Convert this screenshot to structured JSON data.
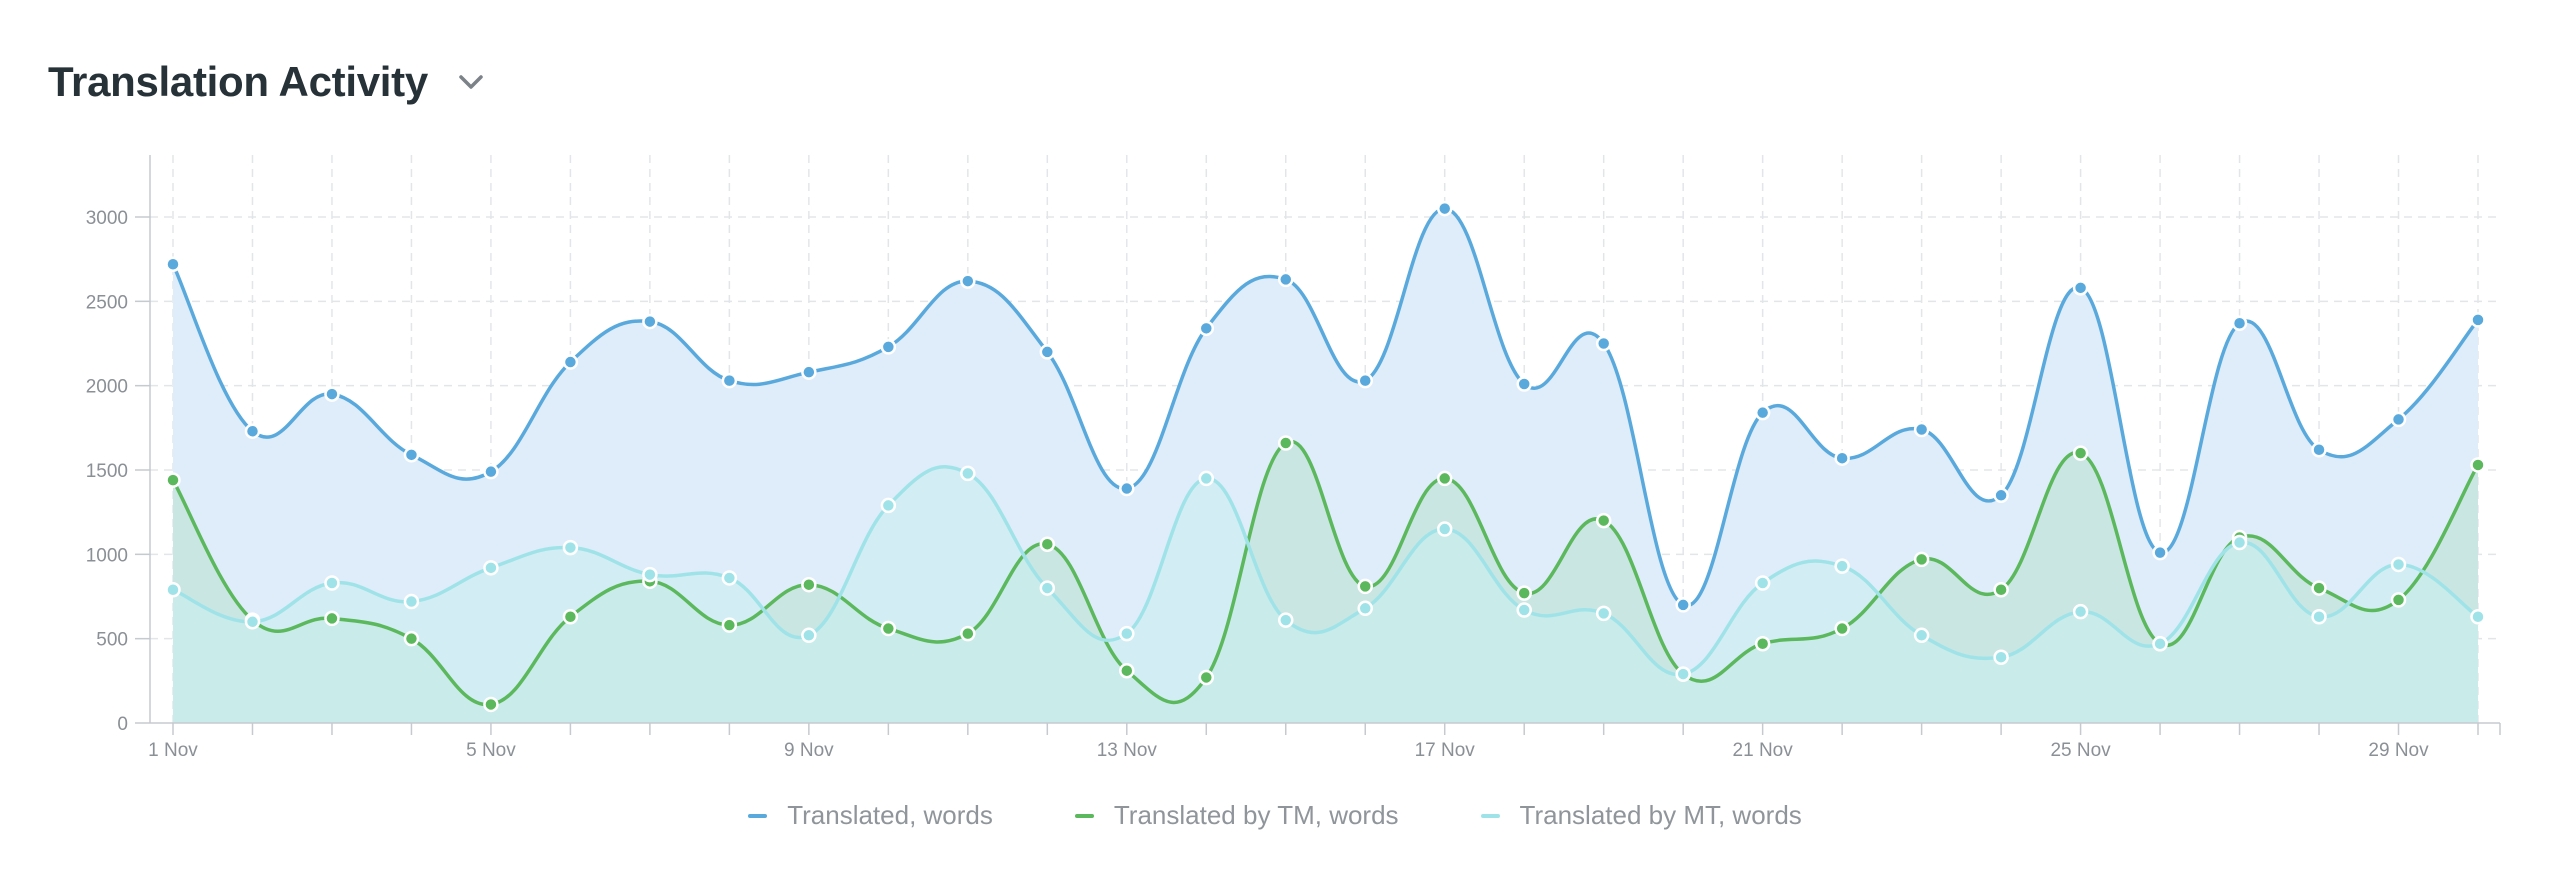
{
  "header": {
    "title": "Translation Activity",
    "dropdown_icon": "chevron-down-icon"
  },
  "chart_data": {
    "type": "area",
    "title": "Translation Activity",
    "x": [
      "1 Nov",
      "2 Nov",
      "3 Nov",
      "4 Nov",
      "5 Nov",
      "6 Nov",
      "7 Nov",
      "8 Nov",
      "9 Nov",
      "10 Nov",
      "11 Nov",
      "12 Nov",
      "13 Nov",
      "14 Nov",
      "15 Nov",
      "16 Nov",
      "17 Nov",
      "18 Nov",
      "19 Nov",
      "20 Nov",
      "21 Nov",
      "22 Nov",
      "23 Nov",
      "24 Nov",
      "25 Nov",
      "26 Nov",
      "27 Nov",
      "28 Nov",
      "29 Nov",
      "30 Nov"
    ],
    "x_tick_labels": [
      "1 Nov",
      "5 Nov",
      "9 Nov",
      "13 Nov",
      "17 Nov",
      "21 Nov",
      "25 Nov",
      "29 Nov"
    ],
    "y_ticks": [
      0,
      500,
      1000,
      1500,
      2000,
      2500,
      3000
    ],
    "ylim": [
      0,
      3350
    ],
    "grid": true,
    "legend_position": "bottom",
    "series": [
      {
        "name": "Translated, words",
        "color": "#5aa9dc",
        "fill": "#deedf9",
        "values": [
          2720,
          1730,
          1950,
          1590,
          1490,
          2140,
          2380,
          2030,
          2080,
          2230,
          2620,
          2200,
          1390,
          2340,
          2630,
          2030,
          3050,
          2010,
          2250,
          700,
          1840,
          1570,
          1740,
          1350,
          2580,
          1010,
          2370,
          1620,
          1800,
          2390
        ]
      },
      {
        "name": "Translated by TM, words",
        "color": "#5cb85c",
        "fill": "#b9e0cf",
        "values": [
          1440,
          610,
          620,
          500,
          110,
          630,
          840,
          580,
          820,
          560,
          530,
          1060,
          310,
          270,
          1660,
          810,
          1450,
          770,
          1200,
          290,
          470,
          560,
          970,
          790,
          1600,
          470,
          1100,
          800,
          730,
          1530
        ]
      },
      {
        "name": "Translated by MT, words",
        "color": "#9fe3e8",
        "fill": "#c9eef1",
        "values": [
          790,
          600,
          830,
          720,
          920,
          1040,
          880,
          860,
          520,
          1290,
          1480,
          800,
          530,
          1450,
          610,
          680,
          1150,
          670,
          650,
          290,
          830,
          930,
          520,
          390,
          660,
          470,
          1070,
          630,
          940,
          630
        ]
      }
    ]
  }
}
